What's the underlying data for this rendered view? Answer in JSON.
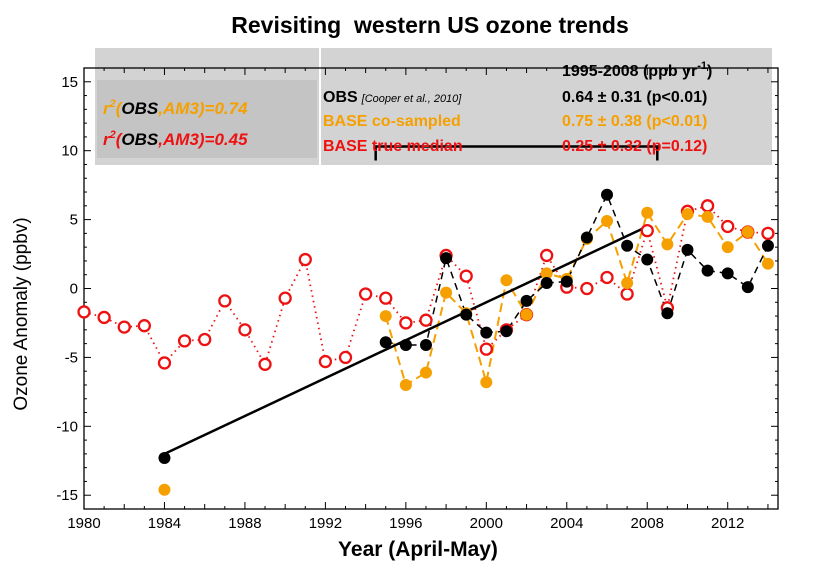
{
  "chart_data": {
    "type": "line",
    "title": "Revisiting  western US ozone trends",
    "xlabel": "Year (April-May)",
    "ylabel": "Ozone Anomaly (ppbv)",
    "xlim": [
      1980,
      2014.5
    ],
    "ylim": [
      -16,
      16
    ],
    "xticks": [
      1980,
      1984,
      1988,
      1992,
      1996,
      2000,
      2004,
      2008,
      2012
    ],
    "yticks": [
      -15,
      -10,
      -5,
      0,
      5,
      10,
      15
    ],
    "grid": false,
    "series": [
      {
        "name": "BASE true median",
        "color": "#ee1111",
        "marker": "open-circle",
        "line": "dotted",
        "x": [
          1980,
          1981,
          1982,
          1983,
          1984,
          1985,
          1986,
          1987,
          1988,
          1989,
          1990,
          1991,
          1992,
          1993,
          1994,
          1995,
          1996,
          1997,
          1998,
          1999,
          2000,
          2001,
          2002,
          2003,
          2004,
          2005,
          2006,
          2007,
          2008,
          2009,
          2010,
          2011,
          2012,
          2013,
          2014
        ],
        "values": [
          -1.7,
          -2.1,
          -2.8,
          -2.7,
          -5.4,
          -3.8,
          -3.7,
          -0.9,
          -3.0,
          -5.5,
          -0.7,
          2.1,
          -5.3,
          -5.0,
          -0.4,
          -0.7,
          -2.5,
          -2.3,
          2.4,
          0.9,
          -4.4,
          -3.0,
          -1.9,
          2.4,
          0.1,
          0.0,
          0.8,
          -0.4,
          4.2,
          -1.4,
          5.6,
          6.0,
          4.5,
          4.1,
          4.0
        ]
      },
      {
        "name": "BASE co-sampled",
        "color": "#f5a000",
        "marker": "filled-circle",
        "line": "dashed",
        "x": [
          1984,
          1995,
          1996,
          1997,
          1998,
          1999,
          2000,
          2001,
          2002,
          2003,
          2004,
          2005,
          2006,
          2007,
          2008,
          2009,
          2010,
          2011,
          2012,
          2013,
          2014
        ],
        "values": [
          -14.6,
          -2.0,
          -7.0,
          -6.1,
          -0.3,
          -1.8,
          -6.8,
          0.6,
          -1.9,
          1.1,
          0.7,
          3.6,
          4.9,
          0.4,
          5.5,
          3.2,
          5.4,
          5.2,
          3.0,
          4.1,
          1.8
        ]
      },
      {
        "name": "OBS",
        "color": "#000000",
        "marker": "filled-circle",
        "line": "dashed",
        "x": [
          1984,
          1995,
          1996,
          1997,
          1998,
          1999,
          2000,
          2001,
          2002,
          2003,
          2004,
          2005,
          2006,
          2007,
          2008,
          2009,
          2010,
          2011,
          2012,
          2013,
          2014
        ],
        "values": [
          -12.3,
          -3.9,
          -4.1,
          -4.1,
          2.2,
          -1.9,
          -3.2,
          -3.1,
          -0.9,
          0.4,
          0.5,
          3.7,
          6.8,
          3.1,
          2.1,
          -1.8,
          2.8,
          1.3,
          1.1,
          0.1,
          3.1
        ]
      }
    ],
    "trend_line": {
      "color": "#000000",
      "x": [
        1984,
        2008
      ],
      "values": [
        -12.0,
        4.5
      ]
    },
    "bracket": {
      "x": [
        1994.5,
        2008.5
      ],
      "y": 10.3
    },
    "annotations": {
      "r2_obs_am3_a": {
        "text_r": "r",
        "sup": "2",
        "paren_open": "(",
        "obs": "OBS",
        "comma": ",",
        "am3": "AM3)=0.74",
        "color": "#f5a000"
      },
      "r2_obs_am3_b": {
        "text_r": "r",
        "sup": "2",
        "paren_open": "(",
        "obs": "OBS",
        "comma": ",",
        "am3": "AM3)=0.45",
        "color": "#ee1111"
      },
      "header_period": "1995-2008 (ppb yr",
      "header_sup": "-1",
      "header_close": ")",
      "rows": [
        {
          "label": "OBS",
          "cite": "[Cooper et al., 2010]",
          "value": "0.64 ± 0.31 (p<0.01)",
          "color": "#000000"
        },
        {
          "label": "BASE co-sampled",
          "cite": "",
          "value": "0.75 ± 0.38 (p<0.01)",
          "color": "#f5a000"
        },
        {
          "label": "BASE true median",
          "cite": "",
          "value": "0.25 ± 0.32 (p=0.12)",
          "color": "#ee1111"
        }
      ]
    }
  }
}
